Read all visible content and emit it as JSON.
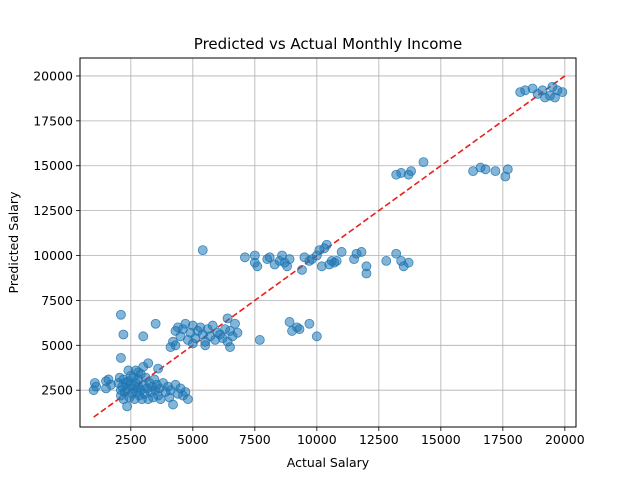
{
  "chart_data": {
    "type": "scatter",
    "title": "Predicted vs Actual Monthly Income",
    "xlabel": "Actual Salary",
    "ylabel": "Predicted Salary",
    "xlim": [
      450,
      20450
    ],
    "ylim": [
      450,
      21000
    ],
    "x_ticks": [
      2500,
      5000,
      7500,
      10000,
      12500,
      15000,
      17500,
      20000
    ],
    "x_tick_labels": [
      "2500",
      "5000",
      "7500",
      "10000",
      "12500",
      "15000",
      "17500",
      "20000"
    ],
    "y_ticks": [
      2500,
      5000,
      7500,
      10000,
      12500,
      15000,
      17500,
      20000
    ],
    "y_tick_labels": [
      "2500",
      "5000",
      "7500",
      "10000",
      "12500",
      "15000",
      "17500",
      "20000"
    ],
    "grid": true,
    "point_color": "#1f77b4",
    "point_opacity": 0.55,
    "reference_line": {
      "from": [
        1000,
        1000
      ],
      "to": [
        20000,
        20000
      ],
      "color": "#e8201e",
      "style": "dashed"
    },
    "series": [
      {
        "points": [
          [
            1000,
            2500
          ],
          [
            1050,
            2900
          ],
          [
            1100,
            2700
          ],
          [
            1500,
            2600
          ],
          [
            1500,
            3000
          ],
          [
            1600,
            3100
          ],
          [
            1700,
            2800
          ],
          [
            2000,
            2900
          ],
          [
            2050,
            3200
          ],
          [
            2100,
            2200
          ],
          [
            2100,
            2500
          ],
          [
            2150,
            2700
          ],
          [
            2200,
            3100
          ],
          [
            2200,
            2000
          ],
          [
            2250,
            2400
          ],
          [
            2300,
            2900
          ],
          [
            2350,
            1600
          ],
          [
            2350,
            2600
          ],
          [
            2400,
            3000
          ],
          [
            2400,
            3600
          ],
          [
            2450,
            2100
          ],
          [
            2500,
            2800
          ],
          [
            2500,
            3300
          ],
          [
            2550,
            2300
          ],
          [
            2600,
            2600
          ],
          [
            2600,
            3200
          ],
          [
            2650,
            2000
          ],
          [
            2700,
            2900
          ],
          [
            2700,
            3600
          ],
          [
            2750,
            2400
          ],
          [
            2800,
            2700
          ],
          [
            2800,
            3100
          ],
          [
            2850,
            2200
          ],
          [
            2900,
            2500
          ],
          [
            2900,
            3400
          ],
          [
            2950,
            2000
          ],
          [
            3000,
            2800
          ],
          [
            3050,
            2300
          ],
          [
            3100,
            3200
          ],
          [
            3150,
            2600
          ],
          [
            3200,
            2000
          ],
          [
            3250,
            2900
          ],
          [
            3300,
            2400
          ],
          [
            3350,
            2700
          ],
          [
            3400,
            2100
          ],
          [
            3450,
            3100
          ],
          [
            3500,
            2500
          ],
          [
            3550,
            2800
          ],
          [
            3600,
            2200
          ],
          [
            3650,
            2600
          ],
          [
            3700,
            2000
          ],
          [
            3800,
            2900
          ],
          [
            3900,
            2400
          ],
          [
            4000,
            2700
          ],
          [
            4050,
            2100
          ],
          [
            4100,
            2500
          ],
          [
            4200,
            1700
          ],
          [
            4300,
            2800
          ],
          [
            4400,
            2300
          ],
          [
            4500,
            2600
          ],
          [
            4600,
            2200
          ],
          [
            4700,
            2400
          ],
          [
            4800,
            2000
          ],
          [
            3000,
            3800
          ],
          [
            3200,
            4000
          ],
          [
            2800,
            3500
          ],
          [
            3600,
            3700
          ],
          [
            2100,
            6700
          ],
          [
            2200,
            5600
          ],
          [
            2100,
            4300
          ],
          [
            3000,
            5500
          ],
          [
            3500,
            6200
          ],
          [
            4200,
            5200
          ],
          [
            4300,
            5800
          ],
          [
            4400,
            6000
          ],
          [
            4500,
            5500
          ],
          [
            4600,
            5900
          ],
          [
            4700,
            6200
          ],
          [
            4800,
            5300
          ],
          [
            4900,
            5700
          ],
          [
            5000,
            6100
          ],
          [
            5100,
            5400
          ],
          [
            5200,
            5800
          ],
          [
            5300,
            6000
          ],
          [
            5400,
            5600
          ],
          [
            5500,
            5200
          ],
          [
            5600,
            5900
          ],
          [
            5700,
            5500
          ],
          [
            5800,
            6100
          ],
          [
            5900,
            5300
          ],
          [
            6000,
            5700
          ],
          [
            6100,
            5600
          ],
          [
            6200,
            5400
          ],
          [
            6300,
            5900
          ],
          [
            6400,
            5200
          ],
          [
            6500,
            5800
          ],
          [
            6600,
            5500
          ],
          [
            6700,
            6200
          ],
          [
            6800,
            5700
          ],
          [
            4100,
            4900
          ],
          [
            4300,
            5000
          ],
          [
            5000,
            5100
          ],
          [
            5400,
            10300
          ],
          [
            5500,
            5000
          ],
          [
            6400,
            6500
          ],
          [
            6500,
            4900
          ],
          [
            7100,
            9900
          ],
          [
            7500,
            9600
          ],
          [
            7600,
            9400
          ],
          [
            7500,
            10000
          ],
          [
            7700,
            5300
          ],
          [
            8000,
            9800
          ],
          [
            8100,
            9900
          ],
          [
            8300,
            9500
          ],
          [
            8500,
            9700
          ],
          [
            8600,
            10000
          ],
          [
            8700,
            9600
          ],
          [
            8800,
            9400
          ],
          [
            8900,
            9800
          ],
          [
            8900,
            6300
          ],
          [
            9000,
            5800
          ],
          [
            9200,
            6000
          ],
          [
            9300,
            5900
          ],
          [
            9400,
            9200
          ],
          [
            9500,
            9900
          ],
          [
            9700,
            9700
          ],
          [
            9700,
            6200
          ],
          [
            9800,
            9800
          ],
          [
            10000,
            5500
          ],
          [
            10000,
            10000
          ],
          [
            10100,
            10300
          ],
          [
            10200,
            9400
          ],
          [
            10300,
            10400
          ],
          [
            10400,
            10600
          ],
          [
            10500,
            9500
          ],
          [
            10600,
            9700
          ],
          [
            10700,
            9600
          ],
          [
            10800,
            9700
          ],
          [
            11000,
            10200
          ],
          [
            11500,
            9800
          ],
          [
            11600,
            10100
          ],
          [
            11800,
            10200
          ],
          [
            12000,
            9400
          ],
          [
            12000,
            9000
          ],
          [
            12800,
            9700
          ],
          [
            13200,
            10100
          ],
          [
            13400,
            9700
          ],
          [
            13500,
            9400
          ],
          [
            13700,
            9600
          ],
          [
            13200,
            14500
          ],
          [
            13400,
            14600
          ],
          [
            13700,
            14500
          ],
          [
            13800,
            14700
          ],
          [
            14300,
            15200
          ],
          [
            16300,
            14700
          ],
          [
            16600,
            14900
          ],
          [
            16800,
            14800
          ],
          [
            17200,
            14700
          ],
          [
            17600,
            14400
          ],
          [
            17700,
            14800
          ],
          [
            18200,
            19100
          ],
          [
            18400,
            19200
          ],
          [
            18700,
            19300
          ],
          [
            18900,
            19000
          ],
          [
            19100,
            19200
          ],
          [
            19200,
            18800
          ],
          [
            19400,
            18900
          ],
          [
            19500,
            19400
          ],
          [
            19700,
            19200
          ],
          [
            19600,
            18800
          ],
          [
            19900,
            19100
          ]
        ]
      }
    ]
  }
}
